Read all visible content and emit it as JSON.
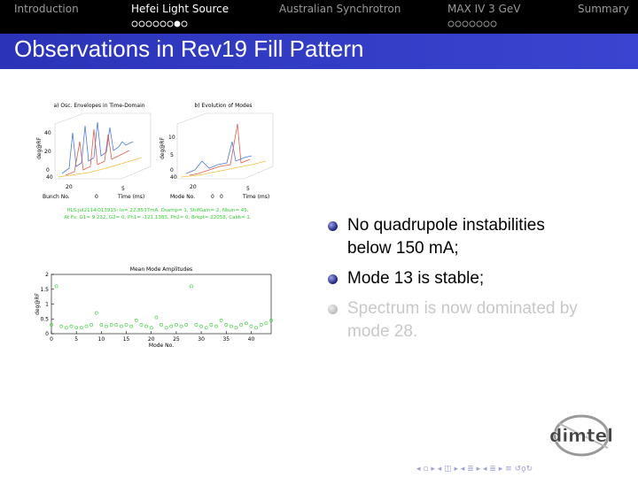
{
  "nav": {
    "sections": [
      {
        "label": "Introduction"
      },
      {
        "label": "Hefei Light Source",
        "dots": 8,
        "current": 6,
        "active": true
      },
      {
        "label": "Australian Synchrotron"
      },
      {
        "label": "MAX IV 3 GeV",
        "dots": 7
      },
      {
        "label": "Summary"
      }
    ]
  },
  "title": "Observations in Rev19 Fill Pattern",
  "figure": {
    "panels": [
      {
        "title": "a) Osc. Envelopes in Time-Domain",
        "ylabel": "deg@RF",
        "xlabel": "Bunch No.",
        "tlabel": "Time (ms)",
        "ticks": [
          "40",
          "20",
          "0",
          "40",
          "20",
          "0",
          "5",
          "0"
        ]
      },
      {
        "title": "b) Evolution of Modes",
        "ylabel": "deg@RF",
        "xlabel": "Mode No.",
        "tlabel": "Time (ms)",
        "ticks": [
          "10",
          "5",
          "0",
          "40",
          "20",
          "0",
          "5",
          "0"
        ]
      }
    ],
    "info": [
      "HLS:jul2114/013915: Io= 22.8537mA, Dsamp= 1, ShifGain= 2, Nbun= 45,",
      "At Fs: G1= 9.232, G2= 0, Ph1= -121.1383, Ph2= 0, Brkpt= 22058, Calib= 1."
    ]
  },
  "chart_data": {
    "type": "scatter",
    "title": "Mean Mode Amplitudes",
    "xlabel": "Mode No.",
    "ylabel": "deg@RF",
    "color": "#33cc33",
    "x": [
      0,
      1,
      2,
      3,
      4,
      5,
      6,
      7,
      8,
      9,
      10,
      11,
      12,
      13,
      14,
      15,
      16,
      17,
      18,
      19,
      20,
      21,
      22,
      23,
      24,
      25,
      26,
      27,
      28,
      29,
      30,
      31,
      32,
      33,
      34,
      35,
      36,
      37,
      38,
      39,
      40,
      41,
      42,
      43,
      44
    ],
    "values": [
      0.3,
      1.6,
      0.25,
      0.2,
      0.25,
      0.2,
      0.2,
      0.25,
      0.3,
      0.7,
      0.3,
      0.25,
      0.3,
      0.3,
      0.25,
      0.3,
      0.25,
      0.45,
      0.3,
      0.25,
      0.2,
      0.55,
      0.3,
      0.2,
      0.25,
      0.3,
      0.25,
      0.3,
      1.6,
      0.3,
      0.25,
      0.2,
      0.3,
      0.25,
      0.45,
      0.3,
      0.25,
      0.2,
      0.3,
      0.35,
      0.25,
      0.2,
      0.3,
      0.35,
      0.45
    ],
    "xlim": [
      0,
      44
    ],
    "xticks": [
      0,
      5,
      10,
      15,
      20,
      25,
      30,
      35,
      40
    ],
    "ylim": [
      0,
      2
    ],
    "yticks": [
      0,
      0.5,
      1,
      1.5,
      2
    ]
  },
  "bullets": [
    {
      "text": "No quadrupole instabilities below 150 mA;"
    },
    {
      "text": "Mode 13 is stable;"
    },
    {
      "text": "Spectrum is now dominated by mode 28.",
      "dimmed": true
    }
  ],
  "logo": "dimtel"
}
